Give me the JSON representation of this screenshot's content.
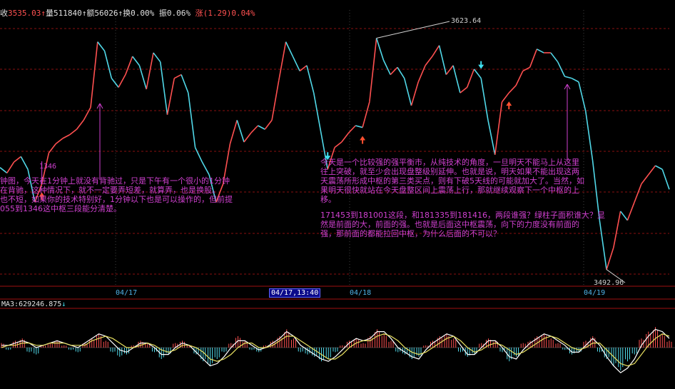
{
  "header": {
    "close_label": "收",
    "close_value": "3535.03",
    "volume_label": "量",
    "volume_value": "511840",
    "amount_label": "额",
    "amount_value": "56026",
    "turnover_label": "换",
    "turnover_value": "0.00%",
    "amplitude_label": "振",
    "amplitude_value": "0.06%",
    "change_label": "涨",
    "change_value": "(1.29)0.04%"
  },
  "colors": {
    "background": "#000000",
    "up": "#ff5050",
    "down": "#50d8e8",
    "grid": "#8a1010",
    "annotation": "#d040d0",
    "arrow_up": "#ff5030",
    "arrow_down": "#40e0f0",
    "date_axis": "#4fb3e8"
  },
  "price_labels": {
    "high": "3623.64",
    "low": "3492.96",
    "mark_1346": "1346"
  },
  "annotations": {
    "left_note": "钟图，今天在1分钟上就没有背驰过，只是下午有一个很小的1分钟\n在背驰，这种情况下，就不一定要弄短差，就算弄，也是换股。\n也不短，如果你的技术特别好，1分钟以下也是可以操作的，但前提\n055到1346这中枢三段能分清楚。",
    "right_note_1": "今天是一个比较强的强平衡市，从纯技术的角度，一旦明天不能马上从这里\n往上突破，就至少会出现盘整级别延伸。也就是说，明天如果不能出现这两\n天震荡所形成中枢的第三类买点，则有下破5天线的可能就加大了。当然，如\n果明天很快就站在今天盘整区间上震荡上行，那就继续观察下一个中枢的上\n移。",
    "right_note_2": "171453到181001这段，和181335到181416，两段谁强？绿柱子面积谁大？显\n然是前面的大，前面的强。也就是后面这中枢震荡，向下的力度没有前面的\n强，那前面的都能拉回中枢，为什么后面的不可以？"
  },
  "date_axis": [
    "04/17",
    "04/17,13:40",
    "04/18",
    "04/19"
  ],
  "indicator": {
    "ma_label": "MA3:629246.875",
    "ma_arrow": "↓"
  },
  "chart_data": {
    "type": "line",
    "title": "",
    "xlabel": "",
    "ylabel": "",
    "price_series": {
      "name": "",
      "x": [
        0,
        1,
        2,
        3,
        4,
        5,
        6,
        7,
        8,
        9,
        10,
        11,
        12,
        13,
        14,
        15,
        16,
        17,
        18,
        19,
        20,
        21,
        22,
        23,
        24,
        25,
        26,
        27,
        28,
        29,
        30,
        31,
        32,
        33,
        34,
        35,
        36,
        37,
        38,
        39,
        40,
        41,
        42,
        43,
        44,
        45,
        46,
        47,
        48,
        49,
        50,
        51,
        52,
        53,
        54,
        55,
        56,
        57,
        58,
        59,
        60,
        61,
        62,
        63,
        64,
        65,
        66,
        67,
        68,
        69,
        70,
        71,
        72,
        73,
        74,
        75,
        76,
        77,
        78,
        79,
        80,
        81,
        82,
        83,
        84,
        85,
        86,
        87,
        88,
        89,
        90,
        91,
        92,
        93,
        94,
        95,
        96
      ],
      "values": [
        3549,
        3546,
        3552,
        3555,
        3548,
        3530,
        3540,
        3557,
        3562,
        3565,
        3567,
        3570,
        3575,
        3582,
        3618,
        3613,
        3598,
        3593,
        3600,
        3610,
        3605,
        3592,
        3612,
        3607,
        3578,
        3598,
        3600,
        3590,
        3560,
        3552,
        3545,
        3530,
        3540,
        3562,
        3575,
        3563,
        3568,
        3572,
        3570,
        3575,
        3597,
        3618,
        3610,
        3602,
        3605,
        3590,
        3569,
        3548,
        3560,
        3563,
        3568,
        3572,
        3571,
        3585,
        3620,
        3608,
        3600,
        3604,
        3598,
        3583,
        3596,
        3605,
        3610,
        3616,
        3600,
        3605,
        3590,
        3593,
        3603,
        3598,
        3575,
        3556,
        3585,
        3590,
        3594,
        3602,
        3604,
        3614,
        3612,
        3612,
        3607,
        3599,
        3598,
        3596,
        3580,
        3553,
        3520,
        3493,
        3505,
        3525,
        3520,
        3530,
        3540,
        3545,
        3550,
        3548,
        3537
      ],
      "ylim": [
        3485,
        3630
      ]
    },
    "buy_markers_x": [
      6,
      52,
      73
    ],
    "sell_markers_x": [
      47,
      69
    ],
    "histogram": {
      "name": "",
      "values": [
        2,
        -1,
        3,
        4,
        -2,
        -3,
        1,
        2,
        3,
        1,
        -1,
        -2,
        2,
        4,
        6,
        3,
        -2,
        -4,
        -3,
        1,
        3,
        2,
        -2,
        -5,
        -3,
        2,
        3,
        1,
        -3,
        -6,
        -8,
        -5,
        -2,
        2,
        5,
        3,
        -1,
        -2,
        1,
        3,
        5,
        8,
        4,
        -2,
        -3,
        -4,
        -6,
        -5,
        -2,
        1,
        3,
        4,
        2,
        5,
        8,
        6,
        3,
        -2,
        -3,
        -5,
        -4,
        1,
        3,
        5,
        6,
        4,
        -2,
        -4,
        -3,
        2,
        4,
        3,
        -2,
        -6,
        -4,
        2,
        3,
        5,
        6,
        4,
        2,
        -1,
        -3,
        -2,
        3,
        5,
        -2,
        -5,
        -8,
        -10,
        -6,
        -3,
        4,
        7,
        9,
        6,
        3
      ],
      "dif": [
        1,
        1,
        2,
        3,
        2,
        0,
        1,
        2,
        3,
        2,
        1,
        0,
        2,
        4,
        6,
        5,
        2,
        -1,
        -2,
        0,
        2,
        2,
        0,
        -3,
        -3,
        0,
        2,
        1,
        -2,
        -5,
        -8,
        -7,
        -4,
        0,
        3,
        3,
        1,
        -1,
        0,
        2,
        4,
        7,
        5,
        1,
        -1,
        -3,
        -5,
        -6,
        -4,
        -1,
        2,
        4,
        3,
        4,
        7,
        7,
        4,
        0,
        -2,
        -4,
        -5,
        -1,
        2,
        4,
        6,
        5,
        1,
        -3,
        -3,
        0,
        3,
        3,
        0,
        -4,
        -5,
        -1,
        2,
        4,
        6,
        5,
        3,
        1,
        -2,
        -2,
        1,
        4,
        1,
        -4,
        -8,
        -11,
        -9,
        -5,
        1,
        5,
        8,
        7,
        4
      ],
      "dea": [
        0,
        1,
        1,
        2,
        2,
        1,
        1,
        2,
        2,
        2,
        1,
        1,
        1,
        3,
        4,
        5,
        4,
        2,
        0,
        0,
        1,
        2,
        1,
        -1,
        -2,
        -1,
        1,
        1,
        0,
        -2,
        -5,
        -6,
        -5,
        -3,
        0,
        2,
        2,
        0,
        0,
        1,
        3,
        5,
        5,
        3,
        1,
        -1,
        -3,
        -5,
        -5,
        -3,
        0,
        2,
        3,
        3,
        5,
        6,
        5,
        3,
        0,
        -2,
        -3,
        -2,
        0,
        2,
        4,
        5,
        3,
        0,
        -2,
        -1,
        1,
        2,
        1,
        -1,
        -3,
        -2,
        0,
        2,
        4,
        5,
        4,
        2,
        0,
        -1,
        0,
        2,
        2,
        -1,
        -4,
        -7,
        -8,
        -7,
        -3,
        1,
        4,
        6,
        5
      ]
    }
  }
}
